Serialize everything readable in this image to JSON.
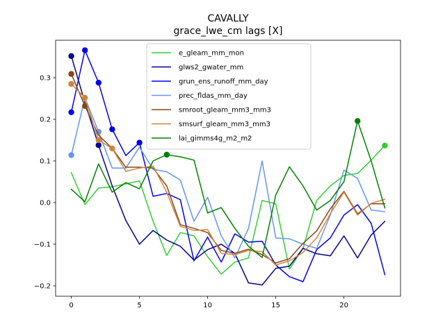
{
  "chart_data": {
    "type": "line",
    "title": "CAVALLY",
    "subtitle": "grace_lwe_cm lags [X]",
    "xlabel": "",
    "ylabel": "",
    "xlim": [
      -1.15,
      24.15
    ],
    "ylim": [
      -0.225,
      0.39
    ],
    "xticks": [
      0,
      5,
      10,
      15,
      20
    ],
    "yticks": [
      -0.2,
      -0.1,
      0.0,
      0.1,
      0.2,
      0.3
    ],
    "ytick_labels": [
      "−0.2",
      "−0.1",
      "0.0",
      "0.1",
      "0.2",
      "0.3"
    ],
    "grid": false,
    "legend_position": "top-center",
    "x": [
      0,
      1,
      2,
      3,
      4,
      5,
      6,
      7,
      8,
      9,
      10,
      11,
      12,
      13,
      14,
      15,
      16,
      17,
      18,
      19,
      20,
      21,
      22,
      23
    ],
    "series": [
      {
        "name": "e_gleam_mm_mon",
        "color": "#32cd32",
        "values": [
          0.072,
          -0.005,
          0.035,
          0.038,
          0.045,
          0.052,
          -0.045,
          -0.127,
          -0.072,
          -0.08,
          -0.13,
          -0.172,
          -0.143,
          -0.133,
          0.005,
          -0.003,
          -0.16,
          -0.11,
          0.005,
          0.04,
          0.065,
          0.07,
          0.102,
          0.137
        ],
        "markers": [
          {
            "x": 23,
            "y": 0.137
          }
        ]
      },
      {
        "name": "glws2_gwater_mm",
        "color": "#00008b",
        "values": [
          0.352,
          0.24,
          0.138,
          0.04,
          -0.043,
          -0.1,
          -0.067,
          -0.09,
          -0.105,
          -0.138,
          -0.113,
          -0.1,
          -0.122,
          -0.193,
          -0.198,
          -0.158,
          -0.153,
          -0.11,
          -0.123,
          -0.128,
          -0.08,
          -0.133,
          -0.078,
          -0.045
        ],
        "markers": [
          {
            "x": 0,
            "y": 0.352
          },
          {
            "x": 2,
            "y": 0.138
          }
        ]
      },
      {
        "name": "grun_ens_runoff_mm_day",
        "color": "#0000ee",
        "values": [
          0.217,
          0.366,
          0.288,
          0.176,
          0.113,
          0.144,
          0.015,
          0.022,
          0.007,
          -0.14,
          -0.083,
          -0.143,
          -0.075,
          -0.095,
          -0.093,
          -0.15,
          -0.178,
          -0.19,
          -0.113,
          -0.085,
          -0.03,
          -0.005,
          -0.05,
          -0.173
        ],
        "markers": [
          {
            "x": 0,
            "y": 0.217
          },
          {
            "x": 1,
            "y": 0.366
          },
          {
            "x": 2,
            "y": 0.288
          },
          {
            "x": 3,
            "y": 0.176
          },
          {
            "x": 5,
            "y": 0.144
          }
        ]
      },
      {
        "name": "prec_fldas_mm_day",
        "color": "#6495ed",
        "values": [
          0.114,
          0.252,
          0.17,
          0.083,
          0.083,
          0.133,
          0.08,
          0.074,
          0.054,
          -0.045,
          0.013,
          -0.08,
          -0.133,
          -0.062,
          0.1,
          -0.085,
          -0.087,
          -0.1,
          -0.11,
          -0.03,
          0.078,
          0.058,
          -0.018,
          -0.022
        ],
        "markers": [
          {
            "x": 0,
            "y": 0.114
          },
          {
            "x": 2,
            "y": 0.17
          }
        ]
      },
      {
        "name": "smroot_gleam_mm3_mm3",
        "color": "#8b4513",
        "values": [
          0.309,
          0.232,
          0.162,
          0.13,
          0.085,
          0.085,
          0.083,
          0.04,
          -0.053,
          -0.062,
          -0.072,
          -0.115,
          -0.122,
          -0.112,
          -0.125,
          -0.145,
          -0.135,
          -0.098,
          -0.068,
          -0.015,
          0.027,
          -0.027,
          -0.003,
          -0.003
        ],
        "markers": [
          {
            "x": 0,
            "y": 0.309
          },
          {
            "x": 1,
            "y": 0.232
          }
        ]
      },
      {
        "name": "smsurf_gleam_mm3_mm3",
        "color": "#cd853f",
        "values": [
          0.285,
          0.252,
          0.15,
          0.13,
          0.075,
          0.083,
          0.088,
          0.025,
          -0.057,
          -0.067,
          -0.065,
          -0.122,
          -0.125,
          -0.115,
          -0.118,
          -0.15,
          -0.14,
          -0.12,
          -0.085,
          -0.027,
          0.025,
          -0.03,
          -0.002,
          0.008
        ],
        "markers": [
          {
            "x": 0,
            "y": 0.285
          },
          {
            "x": 1,
            "y": 0.252
          },
          {
            "x": 2,
            "y": 0.15
          },
          {
            "x": 3,
            "y": 0.13
          }
        ]
      },
      {
        "name": "lai_gimms4g_m2_m2",
        "color": "#008000",
        "values": [
          0.032,
          0.002,
          0.093,
          0.025,
          0.048,
          0.033,
          0.1,
          0.115,
          0.11,
          0.102,
          -0.025,
          -0.012,
          -0.062,
          -0.105,
          -0.132,
          0.018,
          0.086,
          0.04,
          -0.018,
          0.005,
          0.05,
          0.196,
          0.1,
          -0.013
        ],
        "markers": [
          {
            "x": 7,
            "y": 0.115
          },
          {
            "x": 21,
            "y": 0.196
          }
        ]
      }
    ]
  }
}
